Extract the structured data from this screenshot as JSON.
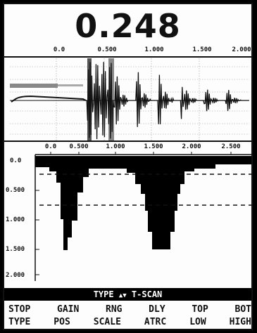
{
  "reading": {
    "value": "0.248"
  },
  "ascan": {
    "ticks": [
      "0.0",
      "0.500",
      "1.000",
      "1.500",
      "2.000"
    ]
  },
  "tscan": {
    "top_ticks": [
      "0.0",
      "0.500",
      "1.000",
      "1.500",
      "2.000",
      "2.500"
    ],
    "left_ticks": [
      "0.0",
      "0.500",
      "1.000",
      "1.500",
      "2.000"
    ]
  },
  "status_bar": {
    "type_label": "TYPE",
    "arrows": "▲▼",
    "mode": "T-SCAN"
  },
  "softkeys": {
    "row1": [
      "STOP",
      "GAIN",
      "RNG",
      "DLY",
      "TOP",
      "BOT"
    ],
    "row2": [
      "TYPE",
      "POS",
      "SCALE",
      "ATRC",
      "LOW",
      "HIGH"
    ]
  },
  "colors": {
    "foreground": "#111111",
    "background": "#fdfdfd",
    "status_bar": "#000000"
  }
}
